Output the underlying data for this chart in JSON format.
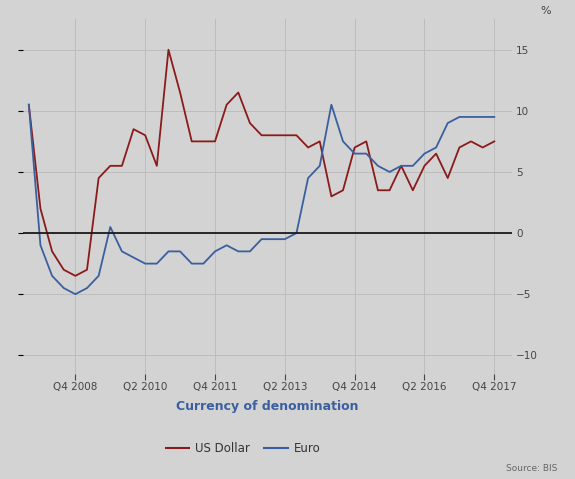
{
  "background_color": "#d3d3d3",
  "plot_bg_color": "#d3d3d3",
  "grid_color": "#bdbdbd",
  "usd_color": "#8b1a1a",
  "eur_color": "#3a5fa0",
  "zero_line_color": "#1a1a1a",
  "ylim": [
    -11.5,
    17.5
  ],
  "yticks": [
    -10,
    -5,
    0,
    5,
    10,
    15
  ],
  "ytick_labels": [
    "−10",
    "−5",
    "0",
    "5",
    "10",
    "15"
  ],
  "ylabel_right": "%",
  "xlabel": "Currency of denomination",
  "legend_label_usd": "US Dollar",
  "legend_label_eur": "Euro",
  "source_text": "Source: BIS",
  "xtick_labels": [
    "Q4 2008",
    "Q2 2010",
    "Q4 2011",
    "Q2 2013",
    "Q4 2014",
    "Q2 2016",
    "Q4 2017"
  ],
  "xtick_positions": [
    4,
    10,
    16,
    22,
    28,
    34,
    40
  ],
  "xlim": [
    -0.5,
    41.5
  ],
  "usd_data_x": [
    0,
    1,
    2,
    3,
    4,
    5,
    6,
    7,
    8,
    9,
    10,
    11,
    12,
    13,
    14,
    15,
    16,
    17,
    18,
    19,
    20,
    21,
    22,
    23,
    24,
    25,
    26,
    27,
    28,
    29,
    30,
    31,
    32,
    33,
    34,
    35,
    36,
    37,
    38,
    39,
    40
  ],
  "usd_data_y": [
    10.5,
    2.0,
    -1.5,
    -3.0,
    -3.5,
    -3.0,
    4.5,
    5.5,
    5.5,
    8.5,
    8.0,
    5.5,
    15.0,
    11.5,
    7.5,
    7.5,
    7.5,
    10.5,
    11.5,
    9.0,
    8.0,
    8.0,
    8.0,
    8.0,
    7.0,
    7.5,
    3.0,
    3.5,
    7.0,
    7.5,
    3.5,
    3.5,
    5.5,
    3.5,
    5.5,
    6.5,
    4.5,
    7.0,
    7.5,
    7.0,
    7.5
  ],
  "eur_data_x": [
    0,
    1,
    2,
    3,
    4,
    5,
    6,
    7,
    8,
    9,
    10,
    11,
    12,
    13,
    14,
    15,
    16,
    17,
    18,
    19,
    20,
    21,
    22,
    23,
    24,
    25,
    26,
    27,
    28,
    29,
    30,
    31,
    32,
    33,
    34,
    35,
    36,
    37,
    38,
    39,
    40
  ],
  "eur_data_y": [
    10.5,
    -1.0,
    -3.5,
    -4.5,
    -5.0,
    -4.5,
    -3.5,
    0.5,
    -1.5,
    -2.0,
    -2.5,
    -2.5,
    -1.5,
    -1.5,
    -2.5,
    -2.5,
    -1.5,
    -1.0,
    -1.5,
    -1.5,
    -0.5,
    -0.5,
    -0.5,
    0.0,
    4.5,
    5.5,
    10.5,
    7.5,
    6.5,
    6.5,
    5.5,
    5.0,
    5.5,
    5.5,
    6.5,
    7.0,
    9.0,
    9.5,
    9.5,
    9.5,
    9.5
  ]
}
